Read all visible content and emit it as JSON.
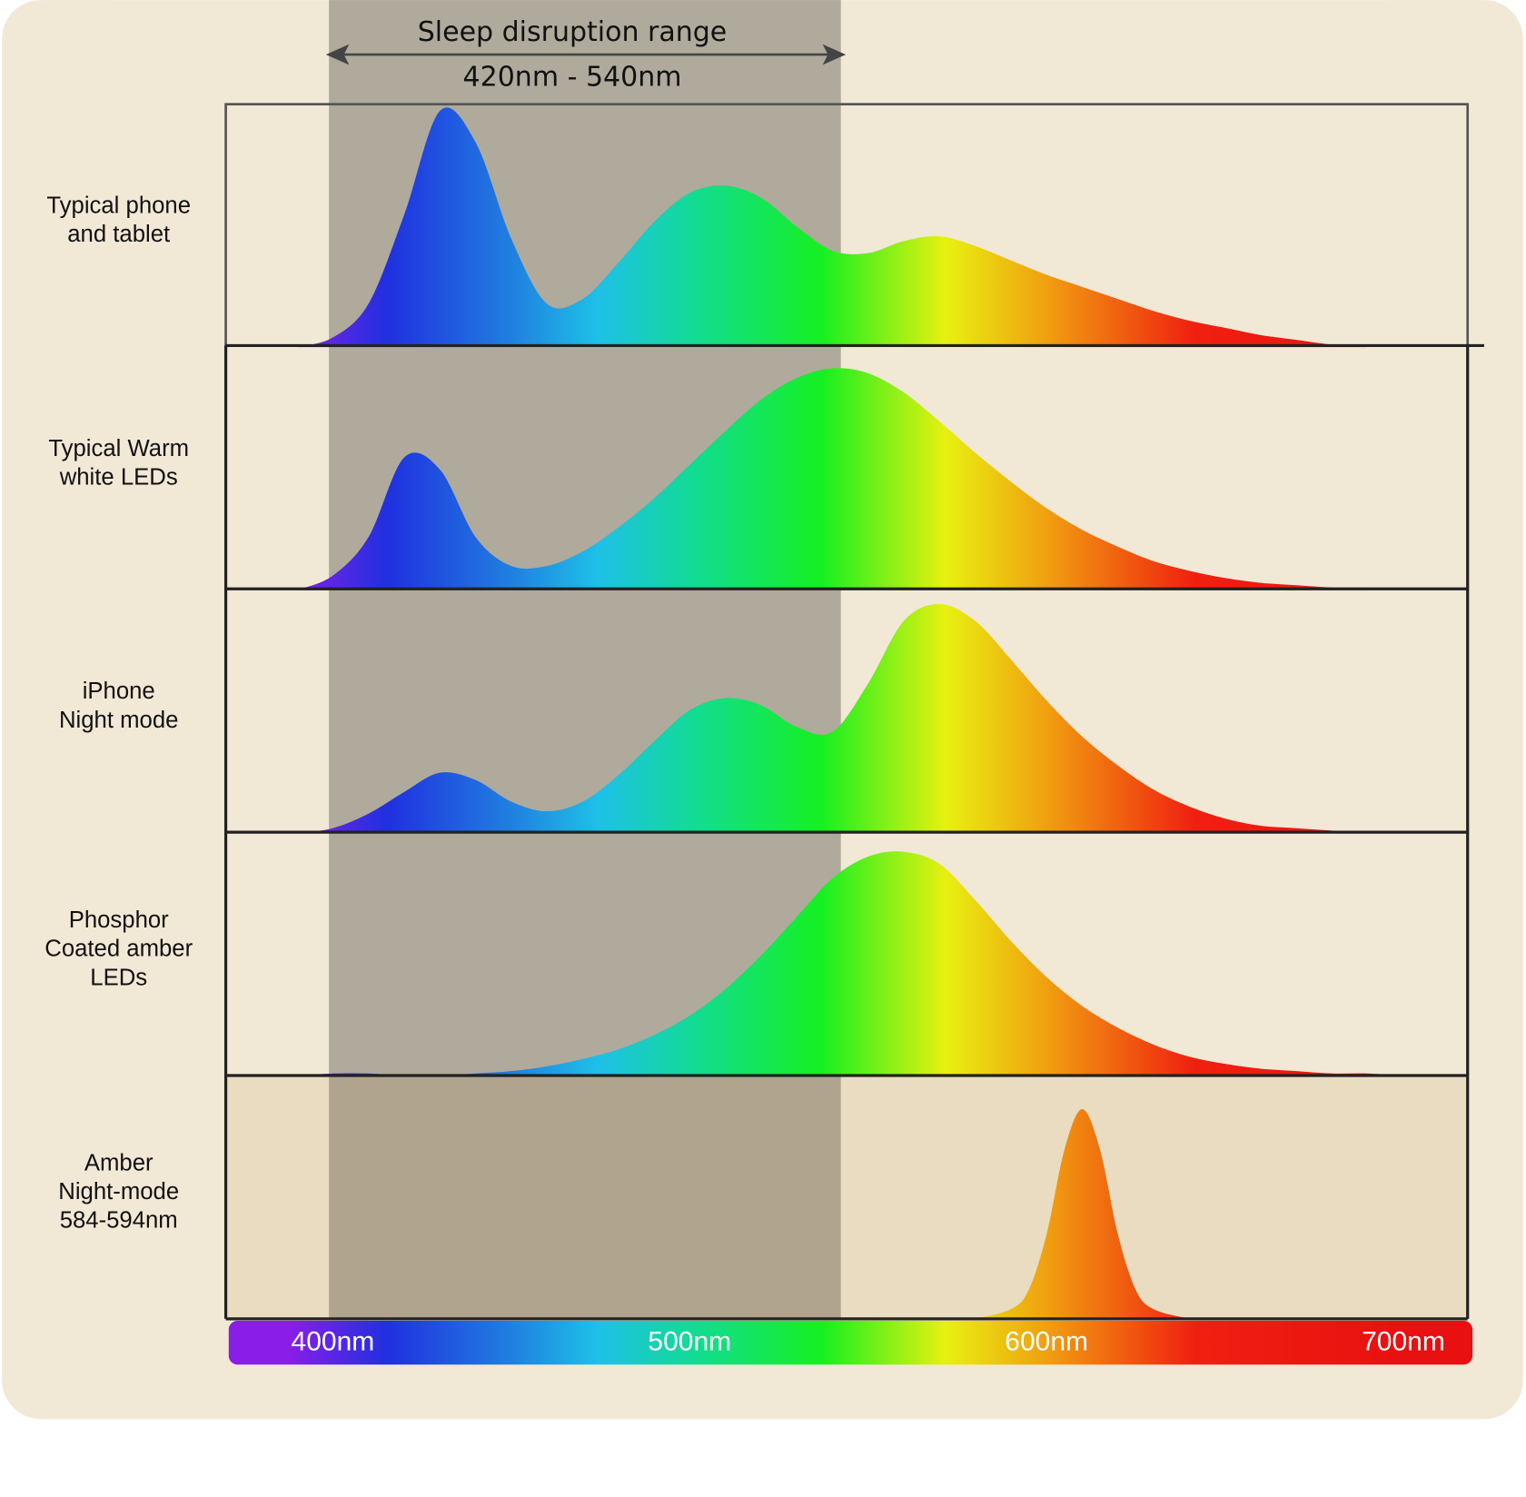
{
  "chart_data": {
    "type": "area",
    "title": "Sleep disruption range",
    "subtitle": "420nm - 540nm",
    "xlim": [
      370,
      718
    ],
    "ylim": [
      0,
      100
    ],
    "xticks": [
      {
        "value": 400,
        "label": "400nm"
      },
      {
        "value": 500,
        "label": "500nm"
      },
      {
        "value": 600,
        "label": "600nm"
      },
      {
        "value": 700,
        "label": "700nm"
      }
    ],
    "series": [
      {
        "name": [
          "Typical phone",
          "and tablet"
        ],
        "x": [
          390,
          400,
          410,
          420,
          430,
          440,
          450,
          460,
          470,
          480,
          490,
          500,
          510,
          520,
          530,
          540,
          550,
          560,
          570,
          580,
          590,
          600,
          610,
          620,
          630,
          640,
          650,
          660,
          670,
          680,
          690
        ],
        "values": [
          0,
          4,
          18,
          55,
          98,
          85,
          45,
          18,
          20,
          35,
          52,
          64,
          67,
          62,
          50,
          40,
          39,
          44,
          46,
          42,
          36,
          30,
          25,
          20,
          15,
          11,
          8,
          5,
          3,
          1,
          0
        ]
      },
      {
        "name": [
          "Typical Warm",
          "white LEDs"
        ],
        "x": [
          390,
          400,
          410,
          420,
          430,
          440,
          450,
          460,
          470,
          480,
          490,
          500,
          510,
          520,
          530,
          540,
          550,
          560,
          570,
          580,
          590,
          600,
          610,
          620,
          630,
          640,
          650,
          660,
          670,
          680,
          690
        ],
        "values": [
          0,
          6,
          22,
          55,
          50,
          22,
          10,
          10,
          16,
          26,
          38,
          52,
          66,
          79,
          88,
          92,
          90,
          82,
          70,
          57,
          45,
          34,
          25,
          18,
          12,
          8,
          5,
          3,
          2,
          1,
          0
        ]
      },
      {
        "name": [
          "iPhone",
          "Night mode"
        ],
        "x": [
          390,
          400,
          410,
          420,
          430,
          440,
          450,
          460,
          470,
          480,
          490,
          500,
          510,
          520,
          530,
          540,
          550,
          560,
          570,
          580,
          590,
          600,
          610,
          620,
          630,
          640,
          650,
          660,
          670,
          680,
          690
        ],
        "values": [
          0,
          2,
          8,
          17,
          25,
          22,
          13,
          9,
          13,
          24,
          38,
          51,
          56,
          53,
          44,
          42,
          62,
          88,
          95,
          88,
          72,
          55,
          40,
          28,
          18,
          11,
          6,
          3,
          2,
          1,
          0
        ]
      },
      {
        "name": [
          "Phosphor",
          "Coated amber",
          "LEDs"
        ],
        "x": [
          390,
          400,
          410,
          420,
          430,
          440,
          450,
          460,
          470,
          480,
          490,
          500,
          510,
          520,
          530,
          540,
          550,
          560,
          570,
          580,
          590,
          600,
          610,
          620,
          630,
          640,
          650,
          660,
          670,
          680,
          690,
          700
        ],
        "values": [
          0,
          1,
          1,
          0,
          0,
          1,
          2,
          4,
          7,
          11,
          17,
          25,
          36,
          50,
          66,
          82,
          91,
          93,
          88,
          73,
          56,
          41,
          29,
          20,
          13,
          8,
          5,
          3,
          2,
          1,
          1,
          0
        ]
      },
      {
        "name": [
          "Amber",
          "Night-mode",
          "584-594nm"
        ],
        "x": [
          580,
          590,
          595,
          600,
          605,
          610,
          615,
          620,
          625,
          630,
          640
        ],
        "values": [
          0,
          4,
          12,
          35,
          70,
          87,
          70,
          35,
          12,
          4,
          0
        ]
      }
    ]
  }
}
